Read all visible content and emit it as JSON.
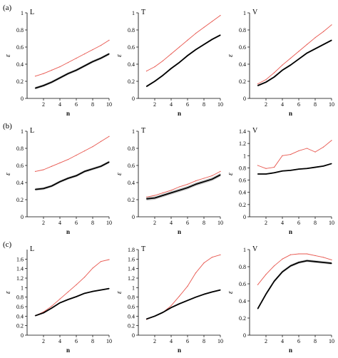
{
  "row_labels": [
    "(a)",
    "(b)",
    "(c)"
  ],
  "colors": {
    "black_line": "#000000",
    "red_line": "#e8574f",
    "band": "#9a9a9a",
    "axis": "#000000"
  },
  "chart_data": [
    {
      "type": "line",
      "panel": "a-L",
      "row": "(a)",
      "title": "L",
      "xlabel": "n",
      "ylabel": "ε",
      "xlim": [
        0,
        10
      ],
      "ylim": [
        0,
        1
      ],
      "xticks": [
        "2",
        "4",
        "6",
        "8",
        "10"
      ],
      "yticks": [
        "0",
        "0.2",
        "0.4",
        "0.6",
        "0.8",
        "1"
      ],
      "x": [
        1,
        2,
        3,
        4,
        5,
        6,
        7,
        8,
        9,
        10
      ],
      "series": [
        {
          "color": "#e8574f",
          "values": [
            0.26,
            0.29,
            0.33,
            0.37,
            0.42,
            0.47,
            0.52,
            0.57,
            0.62,
            0.68
          ]
        },
        {
          "color": "#000000",
          "band": 0.015,
          "values": [
            0.12,
            0.15,
            0.19,
            0.24,
            0.29,
            0.33,
            0.38,
            0.43,
            0.47,
            0.52
          ]
        }
      ]
    },
    {
      "type": "line",
      "panel": "a-T",
      "row": "(a)",
      "title": "T",
      "xlabel": "n",
      "ylabel": "ε",
      "xlim": [
        0,
        10
      ],
      "ylim": [
        0,
        1
      ],
      "xticks": [
        "2",
        "4",
        "6",
        "8",
        "10"
      ],
      "yticks": [
        "0",
        "0.2",
        "0.4",
        "0.6",
        "0.8",
        "1"
      ],
      "x": [
        1,
        2,
        3,
        4,
        5,
        6,
        7,
        8,
        9,
        10
      ],
      "series": [
        {
          "color": "#e8574f",
          "values": [
            0.32,
            0.37,
            0.44,
            0.52,
            0.6,
            0.68,
            0.76,
            0.83,
            0.9,
            0.97
          ]
        },
        {
          "color": "#000000",
          "band": 0.01,
          "values": [
            0.14,
            0.2,
            0.27,
            0.35,
            0.42,
            0.5,
            0.57,
            0.63,
            0.69,
            0.74
          ]
        }
      ]
    },
    {
      "type": "line",
      "panel": "a-V",
      "row": "(a)",
      "title": "V",
      "xlabel": "n",
      "ylabel": "ε",
      "xlim": [
        0,
        10
      ],
      "ylim": [
        0,
        1
      ],
      "xticks": [
        "2",
        "4",
        "6",
        "8",
        "10"
      ],
      "yticks": [
        "0",
        "0.2",
        "0.4",
        "0.6",
        "0.8",
        "1"
      ],
      "x": [
        1,
        2,
        3,
        4,
        5,
        6,
        7,
        8,
        9,
        10
      ],
      "series": [
        {
          "color": "#e8574f",
          "values": [
            0.17,
            0.22,
            0.3,
            0.39,
            0.47,
            0.55,
            0.63,
            0.71,
            0.78,
            0.86
          ]
        },
        {
          "color": "#000000",
          "band": 0.01,
          "values": [
            0.15,
            0.19,
            0.25,
            0.33,
            0.39,
            0.46,
            0.53,
            0.58,
            0.63,
            0.68
          ]
        }
      ]
    },
    {
      "type": "line",
      "panel": "b-L",
      "row": "(b)",
      "title": "L",
      "xlabel": "n",
      "ylabel": "ε",
      "xlim": [
        0,
        10
      ],
      "ylim": [
        0,
        1
      ],
      "xticks": [
        "2",
        "4",
        "6",
        "8",
        "10"
      ],
      "yticks": [
        "0",
        "0.2",
        "0.4",
        "0.6",
        "0.8",
        "1"
      ],
      "x": [
        1,
        2,
        3,
        4,
        5,
        6,
        7,
        8,
        9,
        10
      ],
      "series": [
        {
          "color": "#e8574f",
          "values": [
            0.53,
            0.55,
            0.59,
            0.63,
            0.67,
            0.72,
            0.77,
            0.82,
            0.88,
            0.94
          ]
        },
        {
          "color": "#000000",
          "band": 0.015,
          "values": [
            0.32,
            0.33,
            0.36,
            0.41,
            0.45,
            0.48,
            0.53,
            0.56,
            0.59,
            0.64
          ]
        }
      ]
    },
    {
      "type": "line",
      "panel": "b-T",
      "row": "(b)",
      "title": "T",
      "xlabel": "n",
      "ylabel": "ε",
      "xlim": [
        0,
        10
      ],
      "ylim": [
        0,
        1
      ],
      "xticks": [
        "2",
        "4",
        "6",
        "8",
        "10"
      ],
      "yticks": [
        "0",
        "0.2",
        "0.4",
        "0.6",
        "0.8",
        "1"
      ],
      "x": [
        1,
        2,
        3,
        4,
        5,
        6,
        7,
        8,
        9,
        10
      ],
      "series": [
        {
          "color": "#e8574f",
          "values": [
            0.23,
            0.25,
            0.28,
            0.31,
            0.35,
            0.38,
            0.42,
            0.45,
            0.48,
            0.53
          ]
        },
        {
          "color": "#000000",
          "band": 0.02,
          "values": [
            0.21,
            0.22,
            0.25,
            0.28,
            0.31,
            0.34,
            0.38,
            0.41,
            0.44,
            0.49
          ]
        }
      ]
    },
    {
      "type": "line",
      "panel": "b-V",
      "row": "(b)",
      "title": "V",
      "xlabel": "n",
      "ylabel": "ε",
      "xlim": [
        0,
        10
      ],
      "ylim": [
        0,
        1.4
      ],
      "xticks": [
        "2",
        "4",
        "6",
        "8",
        "10"
      ],
      "yticks": [
        "0",
        "0.2",
        "0.4",
        "0.6",
        "0.8",
        "1",
        "1.2",
        "1.4"
      ],
      "x": [
        1,
        2,
        3,
        4,
        5,
        6,
        7,
        8,
        9,
        10
      ],
      "series": [
        {
          "color": "#e8574f",
          "values": [
            0.84,
            0.79,
            0.81,
            1.0,
            1.02,
            1.08,
            1.12,
            1.06,
            1.14,
            1.25
          ]
        },
        {
          "color": "#000000",
          "band": 0.01,
          "values": [
            0.7,
            0.7,
            0.72,
            0.75,
            0.76,
            0.78,
            0.79,
            0.81,
            0.83,
            0.87
          ]
        }
      ]
    },
    {
      "type": "line",
      "panel": "c-L",
      "row": "(c)",
      "title": "L",
      "xlabel": "n",
      "ylabel": "ε",
      "xlim": [
        0,
        10
      ],
      "ylim": [
        0,
        1.8
      ],
      "xticks": [
        "2",
        "4",
        "6",
        "8",
        "10"
      ],
      "yticks": [
        "0",
        "0.2",
        "0.4",
        "0.6",
        "0.8",
        "1",
        "1.2",
        "1.4",
        "1.6"
      ],
      "x": [
        1,
        2,
        3,
        4,
        5,
        6,
        7,
        8,
        9,
        10
      ],
      "series": [
        {
          "color": "#e8574f",
          "values": [
            0.41,
            0.49,
            0.61,
            0.76,
            0.91,
            1.06,
            1.22,
            1.41,
            1.55,
            1.59
          ]
        },
        {
          "color": "#000000",
          "band": 0.015,
          "values": [
            0.41,
            0.47,
            0.57,
            0.68,
            0.75,
            0.81,
            0.88,
            0.92,
            0.95,
            0.98
          ]
        }
      ]
    },
    {
      "type": "line",
      "panel": "c-T",
      "row": "(c)",
      "title": "T",
      "xlabel": "n",
      "ylabel": "ε",
      "xlim": [
        0,
        10
      ],
      "ylim": [
        0,
        1.8
      ],
      "xticks": [
        "2",
        "4",
        "6",
        "8",
        "10"
      ],
      "yticks": [
        "0",
        "0.2",
        "0.4",
        "0.6",
        "0.8",
        "1",
        "1.2",
        "1.4",
        "1.6",
        "1.8"
      ],
      "x": [
        1,
        2,
        3,
        4,
        5,
        6,
        7,
        8,
        9,
        10
      ],
      "series": [
        {
          "color": "#e8574f",
          "values": [
            0.33,
            0.4,
            0.48,
            0.62,
            0.82,
            1.03,
            1.31,
            1.52,
            1.64,
            1.69
          ]
        },
        {
          "color": "#000000",
          "band": 0.015,
          "values": [
            0.34,
            0.4,
            0.48,
            0.58,
            0.66,
            0.73,
            0.8,
            0.86,
            0.91,
            0.95
          ]
        }
      ]
    },
    {
      "type": "line",
      "panel": "c-V",
      "row": "(c)",
      "title": "V",
      "xlabel": "n",
      "ylabel": "ε",
      "xlim": [
        0,
        10
      ],
      "ylim": [
        0,
        1
      ],
      "xticks": [
        "2",
        "4",
        "6",
        "8",
        "10"
      ],
      "yticks": [
        "0",
        "0.2",
        "0.4",
        "0.6",
        "0.8",
        "1"
      ],
      "x": [
        1,
        2,
        3,
        4,
        5,
        6,
        7,
        8,
        9,
        10
      ],
      "series": [
        {
          "color": "#e8574f",
          "values": [
            0.59,
            0.71,
            0.81,
            0.89,
            0.94,
            0.95,
            0.95,
            0.93,
            0.91,
            0.88
          ]
        },
        {
          "color": "#000000",
          "band": 0.015,
          "values": [
            0.31,
            0.48,
            0.63,
            0.74,
            0.81,
            0.85,
            0.87,
            0.86,
            0.85,
            0.84
          ]
        }
      ]
    }
  ]
}
